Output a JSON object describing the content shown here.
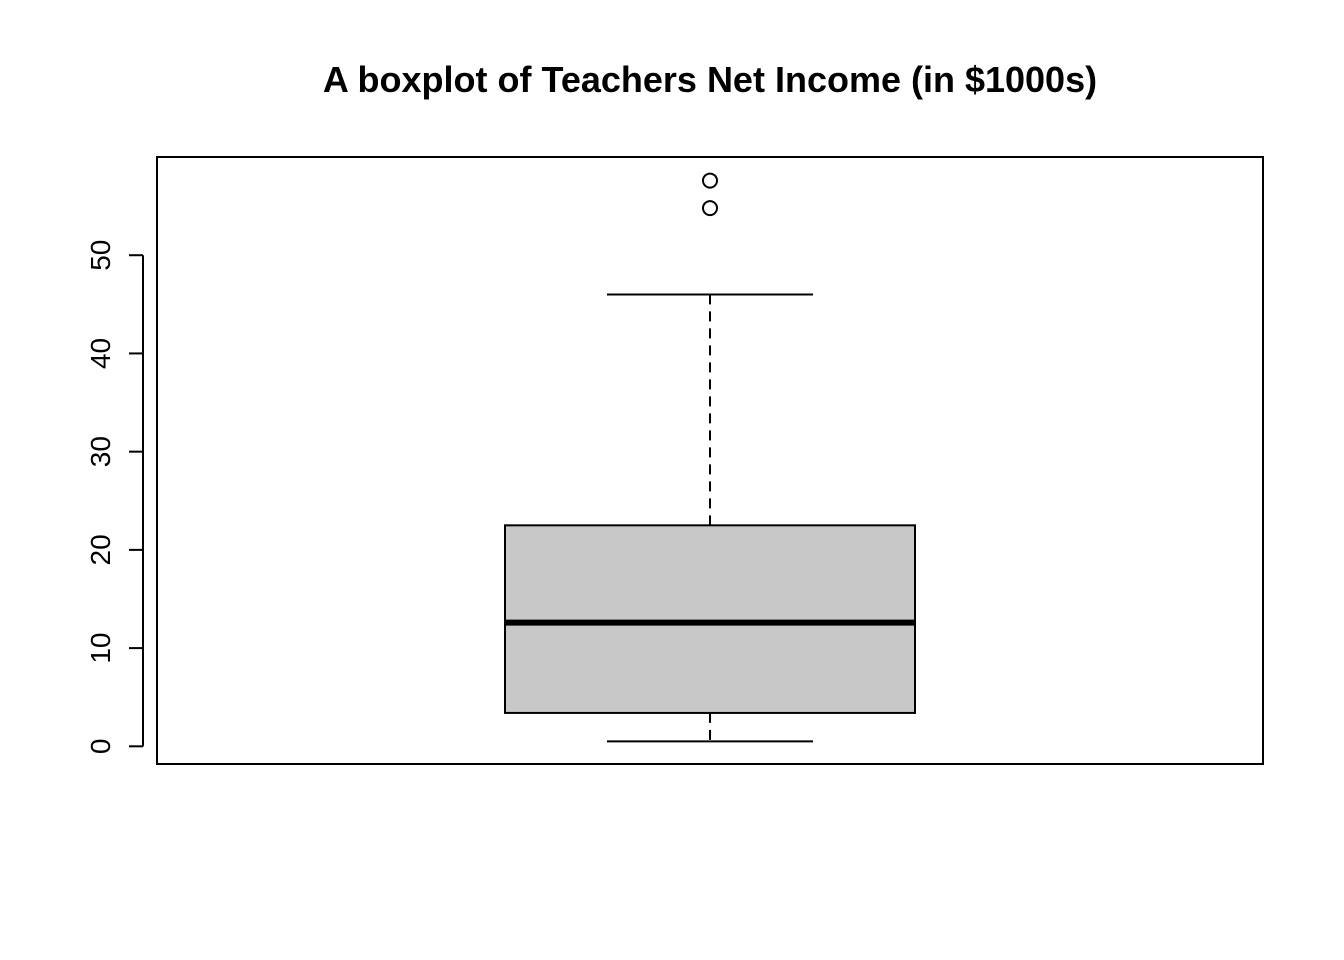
{
  "chart_data": {
    "type": "boxplot",
    "title": "A boxplot of Teachers Net Income (in $1000s)",
    "xlabel": "",
    "ylabel": "",
    "ylim": [
      -1.8,
      60
    ],
    "yticks": [
      0,
      10,
      20,
      30,
      40,
      50
    ],
    "grid": false,
    "box_fill": "#c8c8c8",
    "stroke_color": "#000000",
    "boxes": [
      {
        "whisker_low": 0.5,
        "q1": 3.4,
        "median": 12.6,
        "q3": 22.5,
        "whisker_high": 46.0,
        "outliers": [
          57.6,
          54.8
        ]
      }
    ]
  }
}
